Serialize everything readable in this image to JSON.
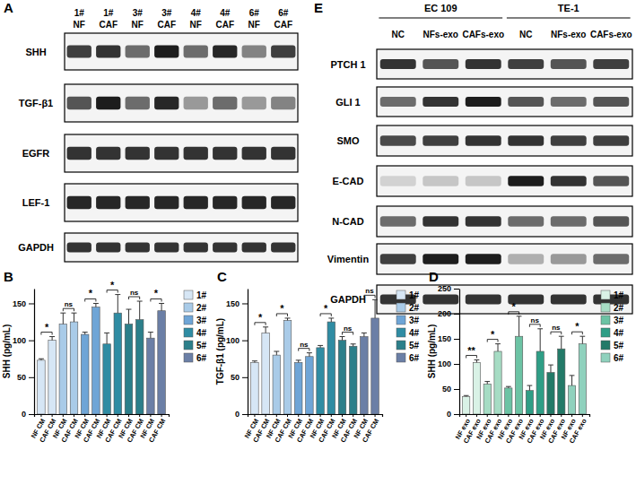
{
  "blots": [
    {
      "panel": "A",
      "lanes": [
        [
          "1#",
          "NF"
        ],
        [
          "1#",
          "CAF"
        ],
        [
          "3#",
          "NF"
        ],
        [
          "3#",
          "CAF"
        ],
        [
          "4#",
          "NF"
        ],
        [
          "4#",
          "CAF"
        ],
        [
          "6#",
          "NF"
        ],
        [
          "6#",
          "CAF"
        ]
      ],
      "rows": [
        {
          "label": "SHH",
          "bands": [
            0.8,
            0.85,
            0.6,
            0.95,
            0.6,
            0.9,
            0.5,
            0.8
          ]
        },
        {
          "label": "TGF-β1",
          "bands": [
            0.7,
            0.95,
            0.6,
            0.9,
            0.4,
            0.6,
            0.4,
            0.5
          ]
        },
        {
          "label": "EGFR",
          "bands": [
            0.85,
            0.85,
            0.85,
            0.85,
            0.85,
            0.85,
            0.85,
            0.85
          ]
        },
        {
          "label": "LEF-1",
          "bands": [
            0.9,
            0.9,
            0.9,
            0.9,
            0.9,
            0.9,
            0.9,
            0.9
          ]
        },
        {
          "label": "GAPDH",
          "bands": [
            0.85,
            0.85,
            0.85,
            0.85,
            0.85,
            0.85,
            0.85,
            0.85
          ]
        }
      ]
    },
    {
      "panel": "E",
      "groups": [
        {
          "label": "EC 109",
          "lanes": [
            "NC",
            "NFs-exo",
            "CAFs-exo"
          ]
        },
        {
          "label": "TE-1",
          "lanes": [
            "NC",
            "NFs-exo",
            "CAFs-exo"
          ]
        }
      ],
      "rows": [
        {
          "label": "PTCH 1",
          "bands": [
            0.85,
            0.7,
            0.85,
            0.8,
            0.7,
            0.8
          ]
        },
        {
          "label": "GLI 1",
          "bands": [
            0.6,
            0.85,
            0.95,
            0.7,
            0.6,
            0.7
          ]
        },
        {
          "label": "SMO",
          "bands": [
            0.75,
            0.8,
            0.85,
            0.85,
            0.8,
            0.8
          ]
        },
        {
          "label": "E-CAD",
          "bands": [
            0.15,
            0.2,
            0.2,
            0.95,
            0.85,
            0.7
          ]
        },
        {
          "label": "N-CAD",
          "bands": [
            0.6,
            0.85,
            0.85,
            0.6,
            0.6,
            0.7
          ]
        },
        {
          "label": "Vimentin",
          "bands": [
            0.8,
            0.95,
            0.95,
            0.3,
            0.4,
            0.6
          ]
        },
        {
          "label": "GAPDH",
          "bands": [
            0.85,
            0.85,
            0.85,
            0.85,
            0.85,
            0.85
          ]
        }
      ]
    }
  ],
  "chart_data": [
    {
      "type": "bar",
      "panel": "B",
      "ylabel": "SHH (pg/mL)",
      "grid": false,
      "categories": [
        "NF CM",
        "CAF CM",
        "NF CM",
        "CAF CM",
        "NF CM",
        "CAF CM",
        "NF CM",
        "CAF CM",
        "NF CM",
        "CAF CM",
        "NF CM",
        "CAF CM"
      ],
      "ylim": [
        0,
        170
      ],
      "yticks": [
        0,
        50,
        100,
        150
      ],
      "series": [
        {
          "name": "1#",
          "color": "#d6e6f5",
          "values": [
            73,
            100,
            null,
            null,
            null,
            null,
            null,
            null,
            null,
            null,
            null,
            null
          ],
          "errors": [
            2,
            5,
            null,
            null,
            null,
            null,
            null,
            null,
            null,
            null,
            null,
            null
          ]
        },
        {
          "name": "2#",
          "color": "#a9cbe8",
          "values": [
            null,
            null,
            122,
            125,
            null,
            null,
            null,
            null,
            null,
            null,
            null,
            null
          ],
          "errors": [
            null,
            null,
            15,
            12,
            null,
            null,
            null,
            null,
            null,
            null,
            null,
            null
          ]
        },
        {
          "name": "3#",
          "color": "#6fa5d6",
          "values": [
            null,
            null,
            null,
            null,
            108,
            145,
            null,
            null,
            null,
            null,
            null,
            null
          ],
          "errors": [
            null,
            null,
            null,
            null,
            3,
            5,
            null,
            null,
            null,
            null,
            null,
            null
          ]
        },
        {
          "name": "4#",
          "color": "#2f8ca3",
          "values": [
            null,
            null,
            null,
            null,
            null,
            null,
            95,
            137,
            null,
            null,
            null,
            null
          ],
          "errors": [
            null,
            null,
            null,
            null,
            null,
            null,
            15,
            25,
            null,
            null,
            null,
            null
          ]
        },
        {
          "name": "5#",
          "color": "#2c7f8a",
          "values": [
            null,
            null,
            null,
            null,
            null,
            null,
            null,
            null,
            122,
            128,
            null,
            null
          ],
          "errors": [
            null,
            null,
            null,
            null,
            null,
            null,
            null,
            null,
            20,
            25,
            null,
            null
          ]
        },
        {
          "name": "6#",
          "color": "#6b7fa6",
          "values": [
            null,
            null,
            null,
            null,
            null,
            null,
            null,
            null,
            null,
            null,
            103,
            140
          ],
          "errors": [
            null,
            null,
            null,
            null,
            null,
            null,
            null,
            null,
            null,
            null,
            8,
            10
          ]
        }
      ],
      "annotations": [
        {
          "text": "*",
          "between": [
            0,
            1
          ]
        },
        {
          "text": "ns",
          "between": [
            2,
            3
          ]
        },
        {
          "text": "*",
          "between": [
            4,
            5
          ]
        },
        {
          "text": "*",
          "between": [
            6,
            7
          ]
        },
        {
          "text": "ns",
          "between": [
            8,
            9
          ]
        },
        {
          "text": "*",
          "between": [
            10,
            11
          ]
        }
      ]
    },
    {
      "type": "bar",
      "panel": "C",
      "ylabel": "TGF-β1 (pg/mL)",
      "grid": false,
      "categories": [
        "NF CM",
        "CAF CM",
        "NF CM",
        "CAF CM",
        "NF CM",
        "CAF CM",
        "NF CM",
        "CAF CM",
        "NF CM",
        "CAF CM",
        "NF CM",
        "CAF CM"
      ],
      "ylim": [
        0,
        170
      ],
      "yticks": [
        0,
        50,
        100,
        150
      ],
      "series": [
        {
          "name": "1#",
          "color": "#d6e6f5",
          "values": [
            70,
            110,
            null,
            null,
            null,
            null,
            null,
            null,
            null,
            null,
            null,
            null
          ],
          "errors": [
            2,
            8,
            null,
            null,
            null,
            null,
            null,
            null,
            null,
            null,
            null,
            null
          ]
        },
        {
          "name": "2#",
          "color": "#a9cbe8",
          "values": [
            null,
            null,
            80,
            127,
            null,
            null,
            null,
            null,
            null,
            null,
            null,
            null
          ],
          "errors": [
            null,
            null,
            5,
            3,
            null,
            null,
            null,
            null,
            null,
            null,
            null,
            null
          ]
        },
        {
          "name": "3#",
          "color": "#6fa5d6",
          "values": [
            null,
            null,
            null,
            null,
            70,
            78,
            null,
            null,
            null,
            null,
            null,
            null
          ],
          "errors": [
            null,
            null,
            null,
            null,
            3,
            5,
            null,
            null,
            null,
            null,
            null,
            null
          ]
        },
        {
          "name": "4#",
          "color": "#2f8ca3",
          "values": [
            null,
            null,
            null,
            null,
            null,
            null,
            90,
            125,
            null,
            null,
            null,
            null
          ],
          "errors": [
            null,
            null,
            null,
            null,
            null,
            null,
            3,
            5,
            null,
            null,
            null,
            null
          ]
        },
        {
          "name": "5#",
          "color": "#2c7f8a",
          "values": [
            null,
            null,
            null,
            null,
            null,
            null,
            null,
            null,
            100,
            92,
            null,
            null
          ],
          "errors": [
            null,
            null,
            null,
            null,
            null,
            null,
            null,
            null,
            5,
            3,
            null,
            null
          ]
        },
        {
          "name": "6#",
          "color": "#6b7fa6",
          "values": [
            null,
            null,
            null,
            null,
            null,
            null,
            null,
            null,
            null,
            null,
            105,
            130
          ],
          "errors": [
            null,
            null,
            null,
            null,
            null,
            null,
            null,
            null,
            null,
            null,
            5,
            25
          ]
        }
      ],
      "annotations": [
        {
          "text": "*",
          "between": [
            0,
            1
          ]
        },
        {
          "text": "*",
          "between": [
            2,
            3
          ]
        },
        {
          "text": "ns",
          "between": [
            4,
            5
          ]
        },
        {
          "text": "*",
          "between": [
            6,
            7
          ]
        },
        {
          "text": "ns",
          "between": [
            8,
            9
          ]
        },
        {
          "text": "ns",
          "between": [
            10,
            11
          ]
        }
      ]
    },
    {
      "type": "bar",
      "panel": "D",
      "ylabel": "SHH (pg/mL)",
      "grid": false,
      "categories": [
        "NF exo",
        "CAF exo",
        "NF exo",
        "CAF exo",
        "NF exo",
        "CAF exo",
        "NF exo",
        "CAF exo",
        "NF exo",
        "CAF exo",
        "NF exo",
        "CAF exo"
      ],
      "ylim": [
        0,
        250
      ],
      "yticks": [
        0,
        50,
        100,
        150,
        200,
        250
      ],
      "series": [
        {
          "name": "1#",
          "color": "#d9f2e6",
          "values": [
            35,
            103,
            null,
            null,
            null,
            null,
            null,
            null,
            null,
            null,
            null,
            null
          ],
          "errors": [
            2,
            5,
            null,
            null,
            null,
            null,
            null,
            null,
            null,
            null,
            null,
            null
          ]
        },
        {
          "name": "2#",
          "color": "#a6dcc4",
          "values": [
            null,
            null,
            60,
            125,
            null,
            null,
            null,
            null,
            null,
            null,
            null,
            null
          ],
          "errors": [
            null,
            null,
            5,
            15,
            null,
            null,
            null,
            null,
            null,
            null,
            null,
            null
          ]
        },
        {
          "name": "3#",
          "color": "#6cc3a4",
          "values": [
            null,
            null,
            null,
            null,
            52,
            155,
            null,
            null,
            null,
            null,
            null,
            null
          ],
          "errors": [
            null,
            null,
            null,
            null,
            3,
            40,
            null,
            null,
            null,
            null,
            null,
            null
          ]
        },
        {
          "name": "4#",
          "color": "#2f9e86",
          "values": [
            null,
            null,
            null,
            null,
            null,
            null,
            47,
            125,
            null,
            null,
            null,
            null
          ],
          "errors": [
            null,
            null,
            null,
            null,
            null,
            null,
            10,
            45,
            null,
            null,
            null,
            null
          ]
        },
        {
          "name": "5#",
          "color": "#237a68",
          "values": [
            null,
            null,
            null,
            null,
            null,
            null,
            null,
            null,
            83,
            130,
            null,
            null
          ],
          "errors": [
            null,
            null,
            null,
            null,
            null,
            null,
            null,
            null,
            15,
            25,
            null,
            null
          ]
        },
        {
          "name": "6#",
          "color": "#8fd1bd",
          "values": [
            null,
            null,
            null,
            null,
            null,
            null,
            null,
            null,
            null,
            null,
            57,
            140
          ],
          "errors": [
            null,
            null,
            null,
            null,
            null,
            null,
            null,
            null,
            null,
            null,
            20,
            15
          ]
        }
      ],
      "annotations": [
        {
          "text": "**",
          "between": [
            0,
            1
          ]
        },
        {
          "text": "*",
          "between": [
            2,
            3
          ]
        },
        {
          "text": "*",
          "between": [
            4,
            5
          ]
        },
        {
          "text": "ns",
          "between": [
            6,
            7
          ]
        },
        {
          "text": "ns",
          "between": [
            8,
            9
          ]
        },
        {
          "text": "*",
          "between": [
            10,
            11
          ]
        }
      ]
    }
  ]
}
